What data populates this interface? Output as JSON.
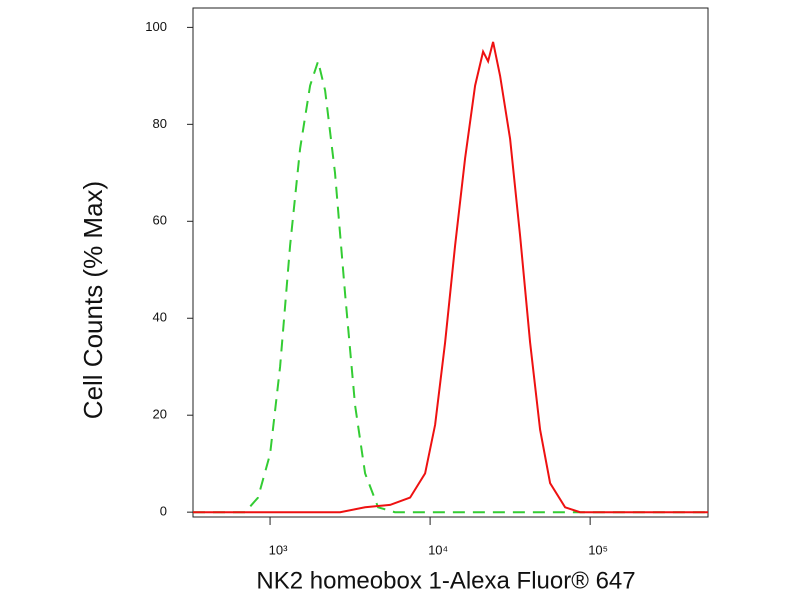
{
  "chart_data": {
    "type": "line",
    "x_label": "NK2 homeobox 1-Alexa Fluor® 647",
    "y_label": "Cell Counts (% Max)",
    "x_scale": "log",
    "xlim": [
      330,
      545000
    ],
    "xticks": [
      {
        "value": 1000,
        "label": "10³"
      },
      {
        "value": 10000,
        "label": "10⁴"
      },
      {
        "value": 100000,
        "label": "10⁵"
      }
    ],
    "ylim": [
      -1,
      104
    ],
    "yticks": [
      0,
      20,
      40,
      60,
      80,
      100
    ],
    "series": [
      {
        "color": "#33cc33",
        "dash": true,
        "x": [
          330,
          698,
          841,
          1000,
          1155,
          1334,
          1540,
          1778,
          1995,
          2207,
          2547,
          2943,
          3398,
          3926,
          4732,
          6026,
          545000
        ],
        "values": [
          0,
          0,
          3,
          12,
          30,
          55,
          75,
          88,
          93,
          87,
          70,
          45,
          22,
          8,
          1,
          0,
          0
        ]
      },
      {
        "color": "#ee1111",
        "dash": false,
        "x": [
          330,
          2738,
          3926,
          5623,
          7499,
          9311,
          10750,
          12410,
          14330,
          16540,
          19110,
          21440,
          23050,
          24770,
          27380,
          31620,
          36520,
          42170,
          48700,
          56230,
          69780,
          86600,
          545000
        ],
        "values": [
          0,
          0,
          1,
          1.5,
          3,
          8,
          18,
          35,
          55,
          73,
          88,
          95,
          93,
          97,
          90,
          77,
          57,
          35,
          17,
          6,
          1,
          0,
          0
        ]
      }
    ]
  }
}
